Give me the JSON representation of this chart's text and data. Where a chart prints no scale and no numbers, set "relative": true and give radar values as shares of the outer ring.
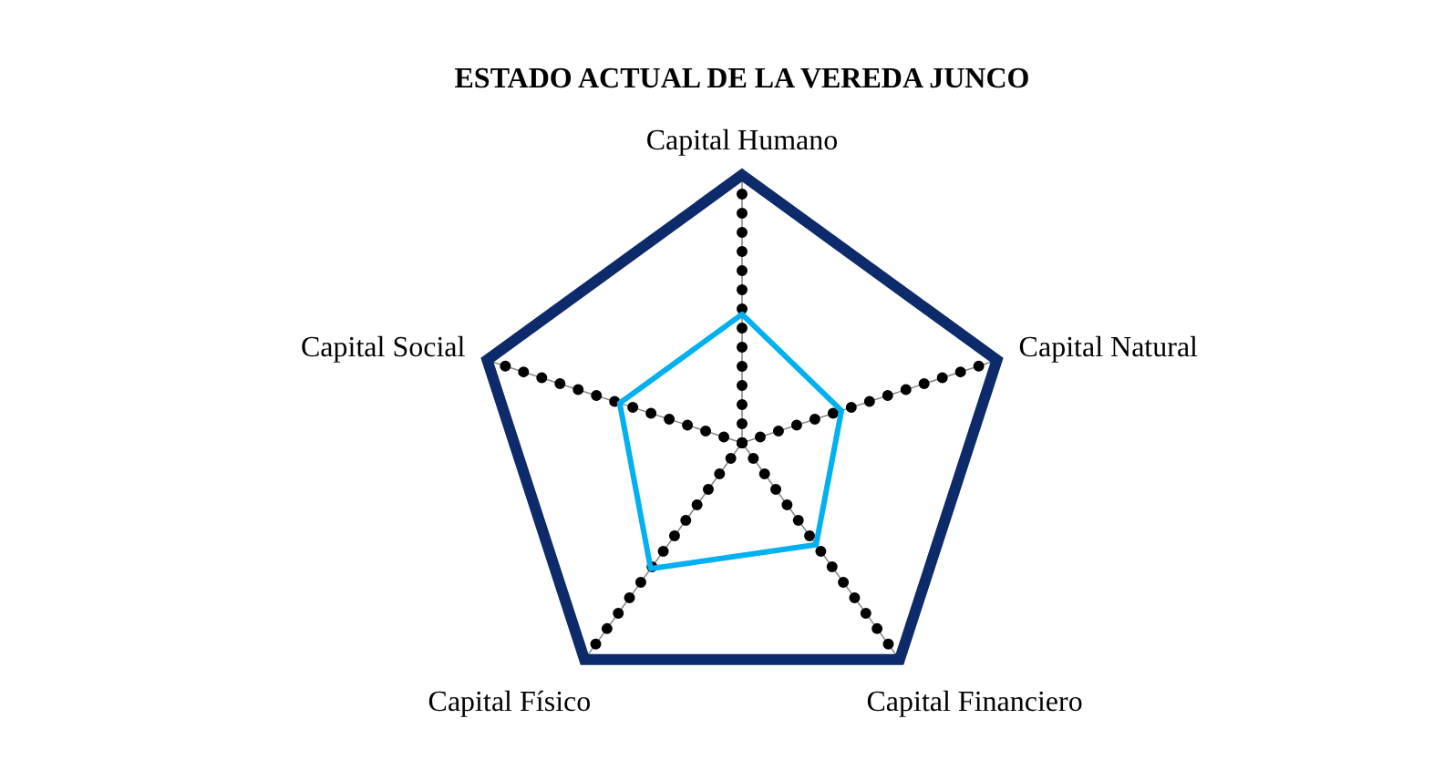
{
  "chart_data": {
    "type": "radar",
    "title": "ESTADO ACTUAL DE LA VEREDA JUNCO",
    "categories": [
      "Capital Humano",
      "Capital Natural",
      "Capital Financiero",
      "Capital Físico",
      "Capital Social"
    ],
    "relative": true,
    "grid": true,
    "series": [
      {
        "color": "#00b0f0",
        "values": [
          0.48,
          0.39,
          0.47,
          0.58,
          0.48
        ]
      }
    ]
  }
}
